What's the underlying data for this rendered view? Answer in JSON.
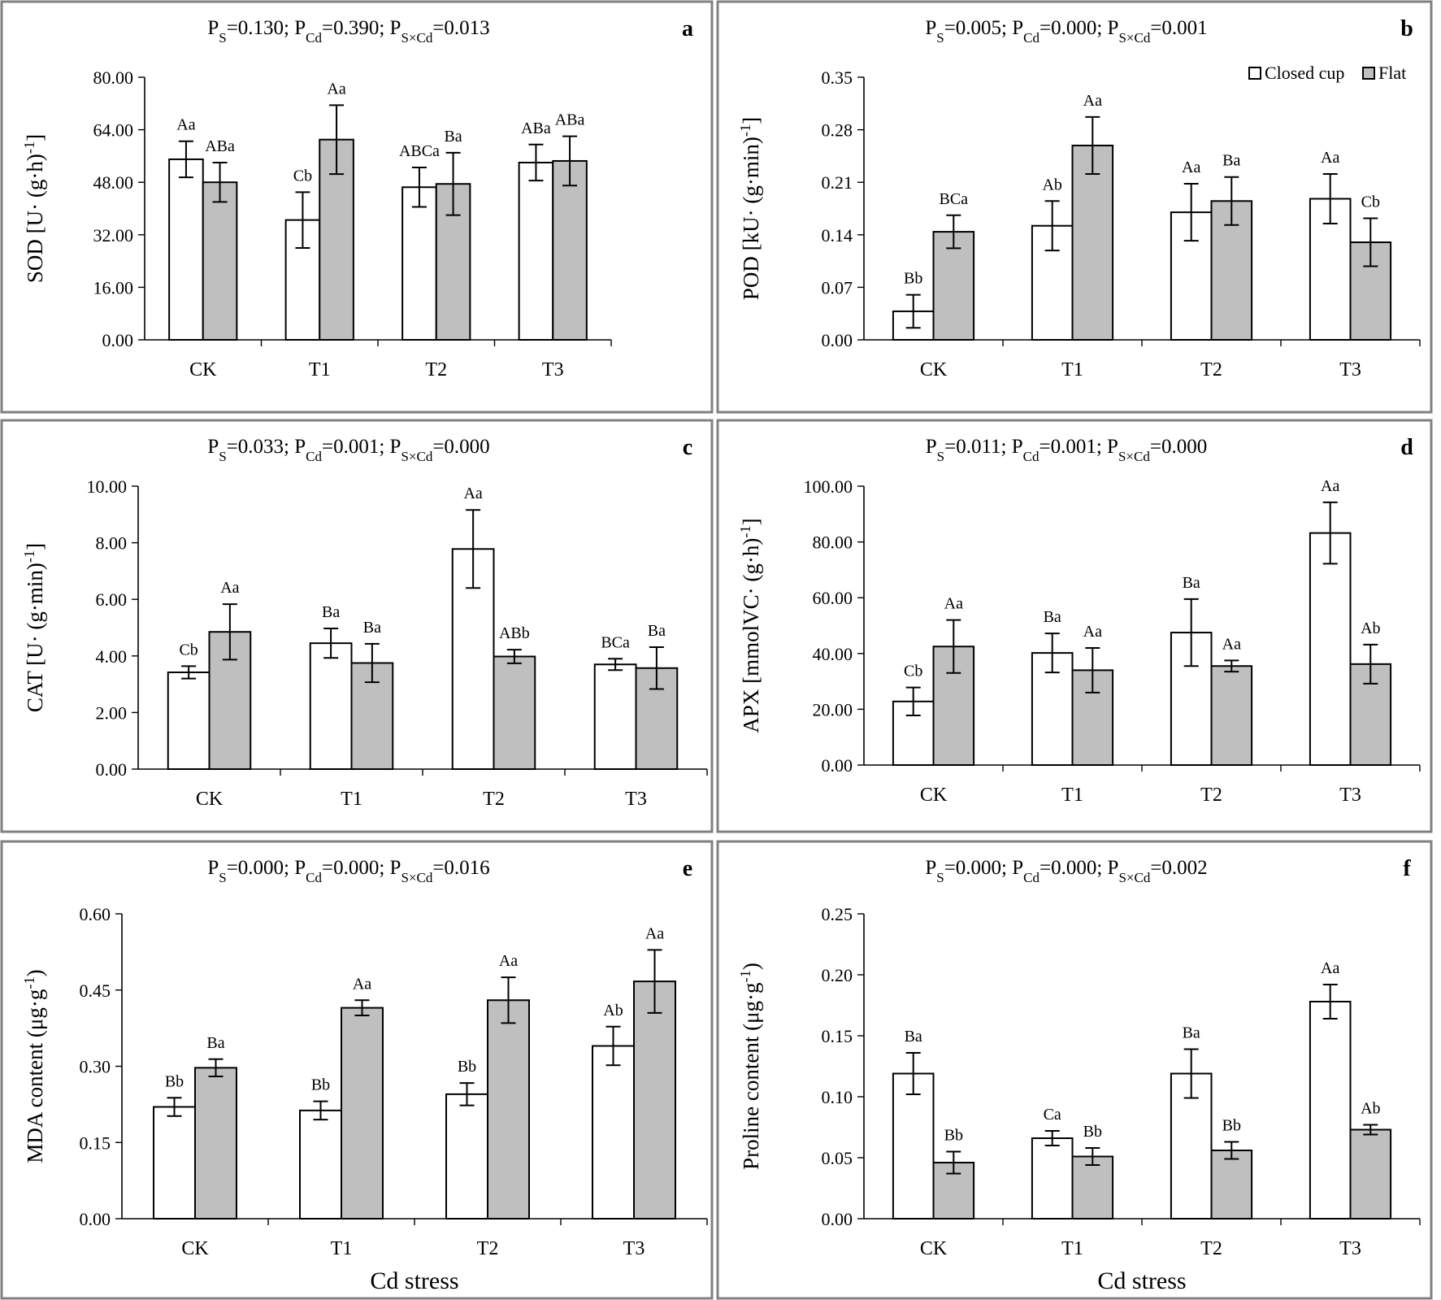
{
  "figure": {
    "legend": {
      "closed_label": "Closed cup",
      "flat_label": "Flat",
      "placement": "top-right of panel b"
    },
    "colors": {
      "closed": "#ffffff",
      "flat": "#bfbfbf",
      "border": "#808080",
      "stroke": "#000000"
    }
  },
  "chart_data": [
    {
      "panel": "a",
      "type": "bar",
      "categories": [
        "CK",
        "T1",
        "T2",
        "T3"
      ],
      "ylabel": "SOD [U· (g·h)<sup>-1</sup>]",
      "xlabel": "",
      "pvalues": "P<sub>S</sub>=0.130; P<sub>Cd</sub>=0.390; P<sub>S×Cd</sub>=0.013",
      "ylim": [
        0,
        80
      ],
      "ticks": [
        "0.00",
        "16.00",
        "32.00",
        "48.00",
        "64.00",
        "80.00"
      ],
      "series": [
        {
          "name": "Closed cup",
          "values": [
            55.0,
            36.5,
            46.5,
            54.0
          ],
          "errors": [
            5.5,
            8.5,
            6.0,
            5.5
          ],
          "labels": [
            "Aa",
            "Cb",
            "ABCa",
            "ABa"
          ]
        },
        {
          "name": "Flat",
          "values": [
            48.0,
            61.0,
            47.5,
            54.5
          ],
          "errors": [
            6.0,
            10.5,
            9.5,
            7.5
          ],
          "labels": [
            "ABa",
            "Aa",
            "Ba",
            "ABa"
          ]
        }
      ]
    },
    {
      "panel": "b",
      "type": "bar",
      "categories": [
        "CK",
        "T1",
        "T2",
        "T3"
      ],
      "ylabel": "POD [kU· (g·min)<sup>-1</sup>]",
      "xlabel": "",
      "pvalues": "P<sub>S</sub>=0.005; P<sub>Cd</sub>=0.000; P<sub>S×Cd</sub>=0.001",
      "ylim": [
        0,
        0.35
      ],
      "ticks": [
        "0.00",
        "0.07",
        "0.14",
        "0.21",
        "0.28",
        "0.35"
      ],
      "series": [
        {
          "name": "Closed cup",
          "values": [
            0.038,
            0.152,
            0.17,
            0.188
          ],
          "errors": [
            0.022,
            0.033,
            0.038,
            0.033
          ],
          "labels": [
            "Bb",
            "Ab",
            "Aa",
            "Aa"
          ]
        },
        {
          "name": "Flat",
          "values": [
            0.144,
            0.259,
            0.185,
            0.13
          ],
          "errors": [
            0.022,
            0.038,
            0.032,
            0.032
          ],
          "labels": [
            "BCa",
            "Aa",
            "Ba",
            "Cb"
          ]
        }
      ]
    },
    {
      "panel": "c",
      "type": "bar",
      "categories": [
        "CK",
        "T1",
        "T2",
        "T3"
      ],
      "ylabel": "CAT [U· (g·min)<sup>-1</sup>]",
      "xlabel": "",
      "pvalues": "P<sub>S</sub>=0.033; P<sub>Cd</sub>=0.001; P<sub>S×Cd</sub>=0.000",
      "ylim": [
        0,
        10
      ],
      "ticks": [
        "0.00",
        "2.00",
        "4.00",
        "6.00",
        "8.00",
        "10.00"
      ],
      "series": [
        {
          "name": "Closed cup",
          "values": [
            3.42,
            4.45,
            7.78,
            3.7
          ],
          "errors": [
            0.22,
            0.52,
            1.38,
            0.2
          ],
          "labels": [
            "Cb",
            "Ba",
            "Aa",
            "BCa"
          ]
        },
        {
          "name": "Flat",
          "values": [
            4.85,
            3.75,
            3.98,
            3.57
          ],
          "errors": [
            0.98,
            0.68,
            0.24,
            0.74
          ],
          "labels": [
            "Aa",
            "Ba",
            "ABb",
            "Ba"
          ]
        }
      ]
    },
    {
      "panel": "d",
      "type": "bar",
      "categories": [
        "CK",
        "T1",
        "T2",
        "T3"
      ],
      "ylabel": "APX [mmolVC· (g·h)<sup>-1</sup>]",
      "xlabel": "",
      "pvalues": "P<sub>S</sub>=0.011; P<sub>Cd</sub>=0.001; P<sub>S×Cd</sub>=0.000",
      "ylim": [
        0,
        100
      ],
      "ticks": [
        "0.00",
        "20.00",
        "40.00",
        "60.00",
        "80.00",
        "100.00"
      ],
      "series": [
        {
          "name": "Closed cup",
          "values": [
            22.8,
            40.2,
            47.5,
            83.2
          ],
          "errors": [
            5.0,
            7.0,
            12.0,
            11.0
          ],
          "labels": [
            "Cb",
            "Ba",
            "Ba",
            "Aa"
          ]
        },
        {
          "name": "Flat",
          "values": [
            42.5,
            34.0,
            35.5,
            36.2
          ],
          "errors": [
            9.5,
            8.0,
            2.0,
            7.0
          ],
          "labels": [
            "Aa",
            "Aa",
            "Aa",
            "Ab"
          ]
        }
      ]
    },
    {
      "panel": "e",
      "type": "bar",
      "categories": [
        "CK",
        "T1",
        "T2",
        "T3"
      ],
      "ylabel": "MDA content (μg·g<sup>-1</sup>)",
      "xlabel": "Cd stress",
      "pvalues": "P<sub>S</sub>=0.000; P<sub>Cd</sub>=0.000; P<sub>S×Cd</sub>=0.016",
      "ylim": [
        0,
        0.6
      ],
      "ticks": [
        "0.00",
        "0.15",
        "0.30",
        "0.45",
        "0.60"
      ],
      "series": [
        {
          "name": "Closed cup",
          "values": [
            0.22,
            0.213,
            0.245,
            0.34
          ],
          "errors": [
            0.018,
            0.018,
            0.022,
            0.038
          ],
          "labels": [
            "Bb",
            "Bb",
            "Bb",
            "Ab"
          ]
        },
        {
          "name": "Flat",
          "values": [
            0.297,
            0.415,
            0.43,
            0.467
          ],
          "errors": [
            0.017,
            0.015,
            0.045,
            0.062
          ],
          "labels": [
            "Ba",
            "Aa",
            "Aa",
            "Aa"
          ]
        }
      ]
    },
    {
      "panel": "f",
      "type": "bar",
      "categories": [
        "CK",
        "T1",
        "T2",
        "T3"
      ],
      "ylabel": "Proline content (μg·g<sup>-1</sup>)",
      "xlabel": "Cd stress",
      "pvalues": "P<sub>S</sub>=0.000; P<sub>Cd</sub>=0.000; P<sub>S×Cd</sub>=0.002",
      "ylim": [
        0,
        0.25
      ],
      "ticks": [
        "0.00",
        "0.05",
        "0.10",
        "0.15",
        "0.20",
        "0.25"
      ],
      "series": [
        {
          "name": "Closed cup",
          "values": [
            0.119,
            0.066,
            0.119,
            0.178
          ],
          "errors": [
            0.017,
            0.006,
            0.02,
            0.014
          ],
          "labels": [
            "Ba",
            "Ca",
            "Ba",
            "Aa"
          ]
        },
        {
          "name": "Flat",
          "values": [
            0.046,
            0.051,
            0.056,
            0.073
          ],
          "errors": [
            0.009,
            0.007,
            0.007,
            0.004
          ],
          "labels": [
            "Bb",
            "Bb",
            "Bb",
            "Ab"
          ]
        }
      ]
    }
  ]
}
